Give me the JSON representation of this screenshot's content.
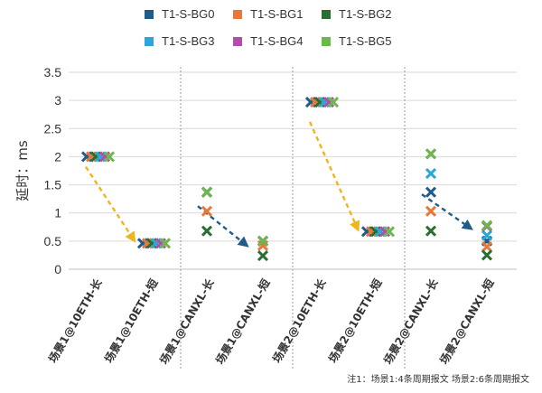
{
  "chart_data": {
    "type": "scatter",
    "ylabel": "延时：ms",
    "ylim": [
      0,
      3.5
    ],
    "yticks": [
      "0",
      "0.5",
      "1",
      "1.5",
      "2",
      "2.5",
      "3",
      "3.5"
    ],
    "grid": true,
    "legend_position": "top",
    "categories": [
      "场景1@10ETH-长",
      "场景1@10ETH-短",
      "场景1@CANXL-长",
      "场景1@CANXL-短",
      "场景2@10ETH-长",
      "场景2@10ETH-短",
      "场景2@CANXL-长",
      "场景2@CANXL-短"
    ],
    "series": [
      {
        "name": "T1-S-BG0",
        "color": "#1f5c8a",
        "values": [
          2,
          0.46,
          1.37,
          0.5,
          2.97,
          0.67,
          1.37,
          0.5
        ]
      },
      {
        "name": "T1-S-BG1",
        "color": "#e8783a",
        "values": [
          2,
          0.46,
          1.03,
          0.42,
          2.97,
          0.67,
          1.03,
          0.4
        ]
      },
      {
        "name": "T1-S-BG2",
        "color": "#2a6e33",
        "values": [
          2,
          0.46,
          0.68,
          0.24,
          2.97,
          0.67,
          0.68,
          0.25
        ]
      },
      {
        "name": "T1-S-BG3",
        "color": "#2aa7d6",
        "values": [
          2,
          0.46,
          1.37,
          0.5,
          2.97,
          0.67,
          1.7,
          0.6
        ]
      },
      {
        "name": "T1-S-BG4",
        "color": "#b04fa8",
        "values": [
          2,
          0.46,
          1.37,
          0.5,
          2.97,
          0.67,
          2.05,
          0.76
        ]
      },
      {
        "name": "T1-S-BG5",
        "color": "#6cb84c",
        "values": [
          2,
          0.46,
          1.37,
          0.5,
          2.97,
          0.67,
          2.05,
          0.78
        ]
      }
    ],
    "arrows": [
      {
        "from": {
          "category": 0,
          "y": 1.82
        },
        "to": {
          "category": 1,
          "y": 0.55
        },
        "color": "#f0b41c"
      },
      {
        "from": {
          "category": 2,
          "y": 1.12
        },
        "to": {
          "category": 3,
          "y": 0.45
        },
        "color": "#1f5c8a"
      },
      {
        "from": {
          "category": 4,
          "y": 2.62
        },
        "to": {
          "category": 5,
          "y": 0.75
        },
        "color": "#f0b41c"
      },
      {
        "from": {
          "category": 6,
          "y": 1.33
        },
        "to": {
          "category": 7,
          "y": 0.75
        },
        "color": "#1f5c8a"
      }
    ],
    "group_separators_after": [
      1,
      3,
      5
    ]
  },
  "note": "注1：场景1:4条周期报文 场景2:6条周期报文"
}
